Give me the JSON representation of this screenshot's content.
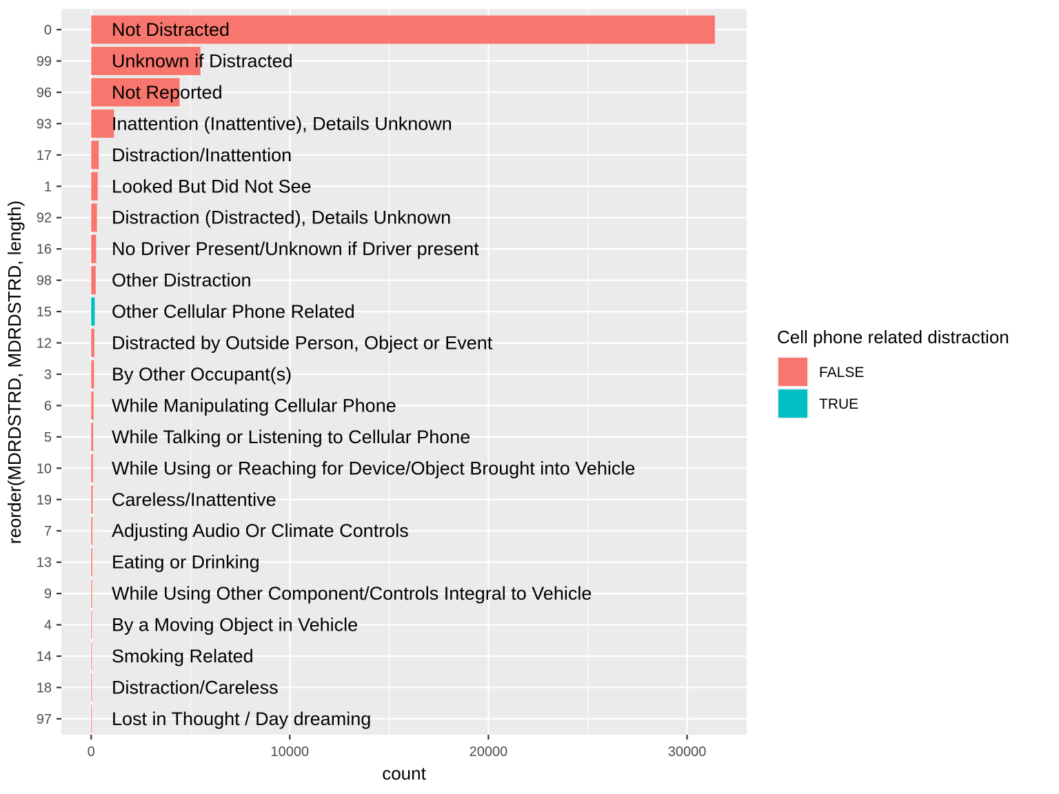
{
  "chart_data": {
    "type": "bar",
    "orientation": "horizontal",
    "xlabel": "count",
    "ylabel": "reorder(MDRDSTRD, MDRDSTRD, length)",
    "xlim": [
      -1500,
      33000
    ],
    "x_ticks": [
      0,
      10000,
      20000,
      30000
    ],
    "x_tick_labels": [
      "0",
      "10000",
      "20000",
      "30000"
    ],
    "grid": true,
    "legend": {
      "title": "Cell phone related distraction",
      "position": "right",
      "entries": [
        {
          "label": "FALSE",
          "color": "#F8766D"
        },
        {
          "label": "TRUE",
          "color": "#00BFC4"
        }
      ]
    },
    "categories": [
      {
        "code": "0",
        "label": "Not Distracted",
        "value": 31400,
        "cell_phone": false
      },
      {
        "code": "99",
        "label": "Unknown if Distracted",
        "value": 5500,
        "cell_phone": false
      },
      {
        "code": "96",
        "label": "Not Reported",
        "value": 4450,
        "cell_phone": false
      },
      {
        "code": "93",
        "label": "Inattention (Inattentive), Details Unknown",
        "value": 1150,
        "cell_phone": false
      },
      {
        "code": "17",
        "label": "Distraction/Inattention",
        "value": 380,
        "cell_phone": false
      },
      {
        "code": "1",
        "label": "Looked But Did Not See",
        "value": 330,
        "cell_phone": false
      },
      {
        "code": "92",
        "label": "Distraction (Distracted), Details Unknown",
        "value": 290,
        "cell_phone": false
      },
      {
        "code": "16",
        "label": "No Driver Present/Unknown if Driver present",
        "value": 250,
        "cell_phone": false
      },
      {
        "code": "98",
        "label": "Other Distraction",
        "value": 230,
        "cell_phone": false
      },
      {
        "code": "15",
        "label": "Other Cellular Phone Related",
        "value": 180,
        "cell_phone": true
      },
      {
        "code": "12",
        "label": "Distracted by Outside Person, Object or Event",
        "value": 160,
        "cell_phone": false
      },
      {
        "code": "3",
        "label": "By Other Occupant(s)",
        "value": 140,
        "cell_phone": false
      },
      {
        "code": "6",
        "label": "While Manipulating Cellular Phone",
        "value": 120,
        "cell_phone": false
      },
      {
        "code": "5",
        "label": "While Talking or Listening to Cellular Phone",
        "value": 100,
        "cell_phone": false
      },
      {
        "code": "10",
        "label": "While Using or Reaching for Device/Object Brought into Vehicle",
        "value": 90,
        "cell_phone": false
      },
      {
        "code": "19",
        "label": "Careless/Inattentive",
        "value": 75,
        "cell_phone": false
      },
      {
        "code": "7",
        "label": "Adjusting Audio Or Climate Controls",
        "value": 65,
        "cell_phone": false
      },
      {
        "code": "13",
        "label": "Eating or Drinking",
        "value": 55,
        "cell_phone": false
      },
      {
        "code": "9",
        "label": "While Using Other Component/Controls Integral to Vehicle",
        "value": 45,
        "cell_phone": false
      },
      {
        "code": "4",
        "label": "By a Moving Object in Vehicle",
        "value": 35,
        "cell_phone": false
      },
      {
        "code": "14",
        "label": "Smoking Related",
        "value": 25,
        "cell_phone": false
      },
      {
        "code": "18",
        "label": "Distraction/Careless",
        "value": 15,
        "cell_phone": false
      },
      {
        "code": "97",
        "label": "Lost in Thought / Day dreaming",
        "value": 10,
        "cell_phone": false
      }
    ]
  }
}
